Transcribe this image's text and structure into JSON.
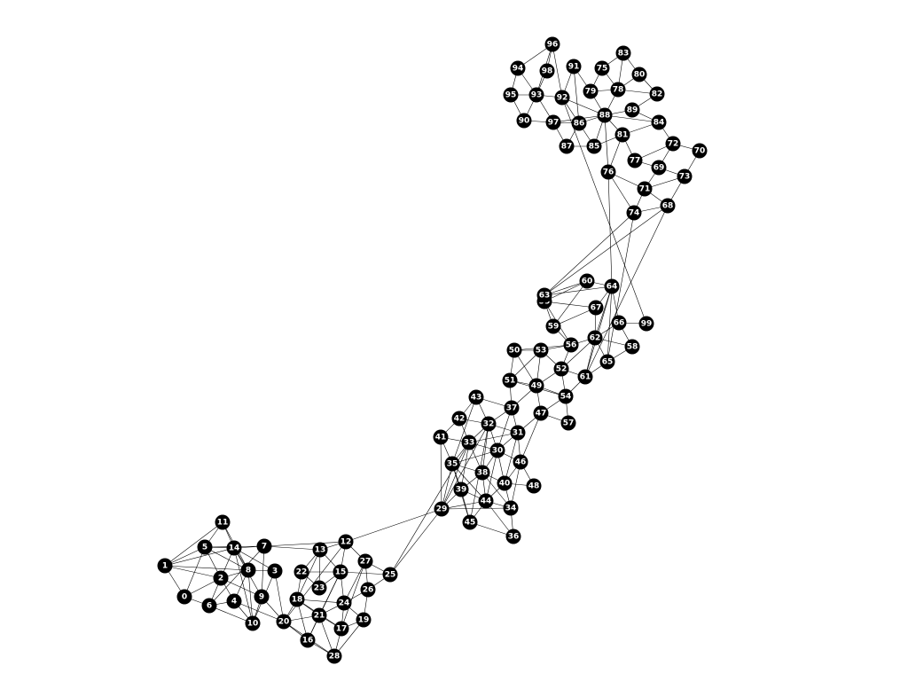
{
  "colors": {
    "node": "#000000",
    "label": "#ffffff",
    "edge": "#000000",
    "background": "#ffffff"
  },
  "graph": {
    "nodes": [
      {
        "id": "0",
        "label": "0"
      },
      {
        "id": "1",
        "label": "1"
      },
      {
        "id": "2",
        "label": "2"
      },
      {
        "id": "3",
        "label": "3"
      },
      {
        "id": "4",
        "label": "4"
      },
      {
        "id": "5",
        "label": "5"
      },
      {
        "id": "6",
        "label": "6"
      },
      {
        "id": "7",
        "label": "7"
      },
      {
        "id": "8",
        "label": "8"
      },
      {
        "id": "9",
        "label": "9"
      },
      {
        "id": "10",
        "label": "10"
      },
      {
        "id": "11",
        "label": "11"
      },
      {
        "id": "12",
        "label": "12"
      },
      {
        "id": "13",
        "label": "13"
      },
      {
        "id": "14",
        "label": "14"
      },
      {
        "id": "15",
        "label": "15"
      },
      {
        "id": "16",
        "label": "16"
      },
      {
        "id": "17",
        "label": "17"
      },
      {
        "id": "18",
        "label": "18"
      },
      {
        "id": "19",
        "label": "19"
      },
      {
        "id": "20",
        "label": "20"
      },
      {
        "id": "21",
        "label": "21"
      },
      {
        "id": "22",
        "label": "22"
      },
      {
        "id": "23",
        "label": "23"
      },
      {
        "id": "24",
        "label": "24"
      },
      {
        "id": "25",
        "label": "25"
      },
      {
        "id": "26",
        "label": "26"
      },
      {
        "id": "27",
        "label": "27"
      },
      {
        "id": "28",
        "label": "28"
      },
      {
        "id": "29",
        "label": "29"
      },
      {
        "id": "30",
        "label": "30"
      },
      {
        "id": "31",
        "label": "31"
      },
      {
        "id": "32",
        "label": "32"
      },
      {
        "id": "33",
        "label": "33"
      },
      {
        "id": "34",
        "label": "34"
      },
      {
        "id": "35",
        "label": "35"
      },
      {
        "id": "36",
        "label": "36"
      },
      {
        "id": "37",
        "label": "37"
      },
      {
        "id": "38",
        "label": "38"
      },
      {
        "id": "39",
        "label": "39"
      },
      {
        "id": "40",
        "label": "40"
      },
      {
        "id": "41",
        "label": "41"
      },
      {
        "id": "42",
        "label": "42"
      },
      {
        "id": "43",
        "label": "43"
      },
      {
        "id": "44",
        "label": "44"
      },
      {
        "id": "45",
        "label": "45"
      },
      {
        "id": "46",
        "label": "46"
      },
      {
        "id": "47",
        "label": "47"
      },
      {
        "id": "48",
        "label": "48"
      },
      {
        "id": "49",
        "label": "49"
      },
      {
        "id": "50",
        "label": "50"
      },
      {
        "id": "51",
        "label": "51"
      },
      {
        "id": "52",
        "label": "52"
      },
      {
        "id": "53",
        "label": "53"
      },
      {
        "id": "54",
        "label": "54"
      },
      {
        "id": "55",
        "label": "55"
      },
      {
        "id": "56",
        "label": "56"
      },
      {
        "id": "57",
        "label": "57"
      },
      {
        "id": "58",
        "label": "58"
      },
      {
        "id": "59",
        "label": "59"
      },
      {
        "id": "60",
        "label": "60"
      },
      {
        "id": "61",
        "label": "61"
      },
      {
        "id": "62",
        "label": "62"
      },
      {
        "id": "63",
        "label": "63"
      },
      {
        "id": "64",
        "label": "64"
      },
      {
        "id": "65",
        "label": "65"
      },
      {
        "id": "66",
        "label": "66"
      },
      {
        "id": "67",
        "label": "67"
      },
      {
        "id": "68",
        "label": "68"
      },
      {
        "id": "69",
        "label": "69"
      },
      {
        "id": "70",
        "label": "70"
      },
      {
        "id": "71",
        "label": "71"
      },
      {
        "id": "72",
        "label": "72"
      },
      {
        "id": "73",
        "label": "73"
      },
      {
        "id": "74",
        "label": "74"
      },
      {
        "id": "75",
        "label": "75"
      },
      {
        "id": "76",
        "label": "76"
      },
      {
        "id": "77",
        "label": "77"
      },
      {
        "id": "78",
        "label": "78"
      },
      {
        "id": "79",
        "label": "79"
      },
      {
        "id": "80",
        "label": "80"
      },
      {
        "id": "81",
        "label": "81"
      },
      {
        "id": "82",
        "label": "82"
      },
      {
        "id": "83",
        "label": "83"
      },
      {
        "id": "84",
        "label": "84"
      },
      {
        "id": "85",
        "label": "85"
      },
      {
        "id": "86",
        "label": "86"
      },
      {
        "id": "87",
        "label": "87"
      },
      {
        "id": "88",
        "label": "88"
      },
      {
        "id": "89",
        "label": "89"
      },
      {
        "id": "90",
        "label": "90"
      },
      {
        "id": "91",
        "label": "91"
      },
      {
        "id": "92",
        "label": "92"
      },
      {
        "id": "93",
        "label": "93"
      },
      {
        "id": "94",
        "label": "94"
      },
      {
        "id": "95",
        "label": "95"
      },
      {
        "id": "96",
        "label": "96"
      },
      {
        "id": "97",
        "label": "97"
      },
      {
        "id": "98",
        "label": "98"
      },
      {
        "id": "99",
        "label": "99"
      }
    ],
    "edges": [
      [
        "1",
        "5"
      ],
      [
        "1",
        "11"
      ],
      [
        "1",
        "14"
      ],
      [
        "1",
        "0"
      ],
      [
        "1",
        "2"
      ],
      [
        "1",
        "8"
      ],
      [
        "5",
        "11"
      ],
      [
        "5",
        "14"
      ],
      [
        "5",
        "2"
      ],
      [
        "5",
        "0"
      ],
      [
        "5",
        "7"
      ],
      [
        "5",
        "8"
      ],
      [
        "11",
        "14"
      ],
      [
        "11",
        "8"
      ],
      [
        "14",
        "7"
      ],
      [
        "14",
        "8"
      ],
      [
        "14",
        "3"
      ],
      [
        "14",
        "2"
      ],
      [
        "14",
        "10"
      ],
      [
        "14",
        "9"
      ],
      [
        "7",
        "13"
      ],
      [
        "7",
        "12"
      ],
      [
        "7",
        "9"
      ],
      [
        "7",
        "6"
      ],
      [
        "8",
        "3"
      ],
      [
        "8",
        "2"
      ],
      [
        "8",
        "10"
      ],
      [
        "8",
        "4"
      ],
      [
        "2",
        "0"
      ],
      [
        "2",
        "6"
      ],
      [
        "2",
        "4"
      ],
      [
        "2",
        "9"
      ],
      [
        "0",
        "6"
      ],
      [
        "6",
        "4"
      ],
      [
        "4",
        "10"
      ],
      [
        "4",
        "20"
      ],
      [
        "6",
        "10"
      ],
      [
        "9",
        "10"
      ],
      [
        "9",
        "20"
      ],
      [
        "3",
        "20"
      ],
      [
        "3",
        "10"
      ],
      [
        "13",
        "12"
      ],
      [
        "13",
        "15"
      ],
      [
        "13",
        "22"
      ],
      [
        "13",
        "18"
      ],
      [
        "13",
        "23"
      ],
      [
        "12",
        "15"
      ],
      [
        "12",
        "29"
      ],
      [
        "12",
        "20"
      ],
      [
        "12",
        "27"
      ],
      [
        "15",
        "22"
      ],
      [
        "15",
        "23"
      ],
      [
        "15",
        "24"
      ],
      [
        "15",
        "16"
      ],
      [
        "15",
        "21"
      ],
      [
        "22",
        "18"
      ],
      [
        "22",
        "23"
      ],
      [
        "18",
        "21"
      ],
      [
        "18",
        "16"
      ],
      [
        "18",
        "24"
      ],
      [
        "18",
        "17"
      ],
      [
        "18",
        "20"
      ],
      [
        "20",
        "21"
      ],
      [
        "20",
        "16"
      ],
      [
        "20",
        "28"
      ],
      [
        "21",
        "16"
      ],
      [
        "21",
        "28"
      ],
      [
        "21",
        "24"
      ],
      [
        "21",
        "17"
      ],
      [
        "24",
        "26"
      ],
      [
        "24",
        "19"
      ],
      [
        "24",
        "17"
      ],
      [
        "24",
        "27"
      ],
      [
        "26",
        "27"
      ],
      [
        "26",
        "25"
      ],
      [
        "26",
        "19"
      ],
      [
        "27",
        "25"
      ],
      [
        "27",
        "17"
      ],
      [
        "25",
        "15"
      ],
      [
        "25",
        "29"
      ],
      [
        "25",
        "33"
      ],
      [
        "17",
        "19"
      ],
      [
        "17",
        "28"
      ],
      [
        "16",
        "28"
      ],
      [
        "19",
        "28"
      ],
      [
        "29",
        "35"
      ],
      [
        "29",
        "33"
      ],
      [
        "29",
        "39"
      ],
      [
        "29",
        "44"
      ],
      [
        "29",
        "41"
      ],
      [
        "29",
        "32"
      ],
      [
        "41",
        "42"
      ],
      [
        "41",
        "33"
      ],
      [
        "41",
        "35"
      ],
      [
        "42",
        "43"
      ],
      [
        "42",
        "32"
      ],
      [
        "42",
        "33"
      ],
      [
        "43",
        "32"
      ],
      [
        "43",
        "37"
      ],
      [
        "43",
        "35"
      ],
      [
        "32",
        "33"
      ],
      [
        "32",
        "37"
      ],
      [
        "32",
        "31"
      ],
      [
        "32",
        "30"
      ],
      [
        "32",
        "38"
      ],
      [
        "32",
        "45"
      ],
      [
        "33",
        "35"
      ],
      [
        "33",
        "38"
      ],
      [
        "33",
        "30"
      ],
      [
        "33",
        "39"
      ],
      [
        "33",
        "31"
      ],
      [
        "35",
        "39"
      ],
      [
        "35",
        "38"
      ],
      [
        "35",
        "44"
      ],
      [
        "35",
        "45"
      ],
      [
        "35",
        "30"
      ],
      [
        "37",
        "31"
      ],
      [
        "37",
        "30"
      ],
      [
        "37",
        "49"
      ],
      [
        "37",
        "51"
      ],
      [
        "31",
        "30"
      ],
      [
        "31",
        "46"
      ],
      [
        "31",
        "40"
      ],
      [
        "31",
        "47"
      ],
      [
        "30",
        "38"
      ],
      [
        "30",
        "40"
      ],
      [
        "30",
        "46"
      ],
      [
        "30",
        "44"
      ],
      [
        "38",
        "39"
      ],
      [
        "38",
        "40"
      ],
      [
        "38",
        "44"
      ],
      [
        "38",
        "34"
      ],
      [
        "39",
        "44"
      ],
      [
        "39",
        "45"
      ],
      [
        "40",
        "46"
      ],
      [
        "40",
        "34"
      ],
      [
        "40",
        "48"
      ],
      [
        "40",
        "44"
      ],
      [
        "44",
        "34"
      ],
      [
        "44",
        "45"
      ],
      [
        "44",
        "36"
      ],
      [
        "34",
        "36"
      ],
      [
        "34",
        "46"
      ],
      [
        "34",
        "29"
      ],
      [
        "45",
        "36"
      ],
      [
        "46",
        "48"
      ],
      [
        "46",
        "47"
      ],
      [
        "47",
        "49"
      ],
      [
        "47",
        "57"
      ],
      [
        "47",
        "54"
      ],
      [
        "49",
        "51"
      ],
      [
        "49",
        "53"
      ],
      [
        "49",
        "50"
      ],
      [
        "49",
        "52"
      ],
      [
        "49",
        "54"
      ],
      [
        "51",
        "50"
      ],
      [
        "51",
        "53"
      ],
      [
        "51",
        "54"
      ],
      [
        "50",
        "53"
      ],
      [
        "50",
        "56"
      ],
      [
        "53",
        "52"
      ],
      [
        "53",
        "56"
      ],
      [
        "52",
        "54"
      ],
      [
        "52",
        "61"
      ],
      [
        "52",
        "56"
      ],
      [
        "52",
        "62"
      ],
      [
        "54",
        "57"
      ],
      [
        "54",
        "61"
      ],
      [
        "56",
        "59"
      ],
      [
        "56",
        "62"
      ],
      [
        "56",
        "55"
      ],
      [
        "59",
        "55"
      ],
      [
        "59",
        "60"
      ],
      [
        "59",
        "67"
      ],
      [
        "55",
        "63"
      ],
      [
        "55",
        "60"
      ],
      [
        "55",
        "67"
      ],
      [
        "63",
        "60"
      ],
      [
        "63",
        "64"
      ],
      [
        "63",
        "68"
      ],
      [
        "63",
        "74"
      ],
      [
        "60",
        "64"
      ],
      [
        "64",
        "67"
      ],
      [
        "64",
        "62"
      ],
      [
        "64",
        "61"
      ],
      [
        "64",
        "66"
      ],
      [
        "64",
        "65"
      ],
      [
        "67",
        "62"
      ],
      [
        "62",
        "61"
      ],
      [
        "62",
        "66"
      ],
      [
        "62",
        "58"
      ],
      [
        "62",
        "65"
      ],
      [
        "61",
        "65"
      ],
      [
        "61",
        "68"
      ],
      [
        "66",
        "58"
      ],
      [
        "66",
        "99"
      ],
      [
        "65",
        "58"
      ],
      [
        "65",
        "74"
      ],
      [
        "68",
        "74"
      ],
      [
        "68",
        "73"
      ],
      [
        "68",
        "71"
      ],
      [
        "74",
        "71"
      ],
      [
        "74",
        "76"
      ],
      [
        "71",
        "76"
      ],
      [
        "71",
        "69"
      ],
      [
        "71",
        "73"
      ],
      [
        "69",
        "77"
      ],
      [
        "69",
        "72"
      ],
      [
        "69",
        "73"
      ],
      [
        "77",
        "72"
      ],
      [
        "72",
        "70"
      ],
      [
        "72",
        "84"
      ],
      [
        "70",
        "73"
      ],
      [
        "77",
        "81"
      ],
      [
        "76",
        "81"
      ],
      [
        "76",
        "88"
      ],
      [
        "81",
        "84"
      ],
      [
        "81",
        "88"
      ],
      [
        "81",
        "85"
      ],
      [
        "84",
        "89"
      ],
      [
        "84",
        "88"
      ],
      [
        "89",
        "88"
      ],
      [
        "89",
        "82"
      ],
      [
        "88",
        "78"
      ],
      [
        "88",
        "79"
      ],
      [
        "88",
        "86"
      ],
      [
        "88",
        "85"
      ],
      [
        "88",
        "97"
      ],
      [
        "88",
        "92"
      ],
      [
        "78",
        "80"
      ],
      [
        "78",
        "82"
      ],
      [
        "78",
        "75"
      ],
      [
        "78",
        "83"
      ],
      [
        "78",
        "79"
      ],
      [
        "75",
        "83"
      ],
      [
        "75",
        "79"
      ],
      [
        "80",
        "83"
      ],
      [
        "80",
        "82"
      ],
      [
        "79",
        "91"
      ],
      [
        "91",
        "92"
      ],
      [
        "91",
        "86"
      ],
      [
        "92",
        "93"
      ],
      [
        "92",
        "86"
      ],
      [
        "92",
        "96"
      ],
      [
        "93",
        "94"
      ],
      [
        "93",
        "95"
      ],
      [
        "93",
        "96"
      ],
      [
        "93",
        "97"
      ],
      [
        "93",
        "98"
      ],
      [
        "93",
        "90"
      ],
      [
        "94",
        "96"
      ],
      [
        "94",
        "95"
      ],
      [
        "95",
        "90"
      ],
      [
        "90",
        "97"
      ],
      [
        "97",
        "87"
      ],
      [
        "97",
        "86"
      ],
      [
        "87",
        "86"
      ],
      [
        "87",
        "85"
      ],
      [
        "86",
        "85"
      ],
      [
        "96",
        "98"
      ],
      [
        "92",
        "99"
      ],
      [
        "76",
        "64"
      ]
    ]
  }
}
